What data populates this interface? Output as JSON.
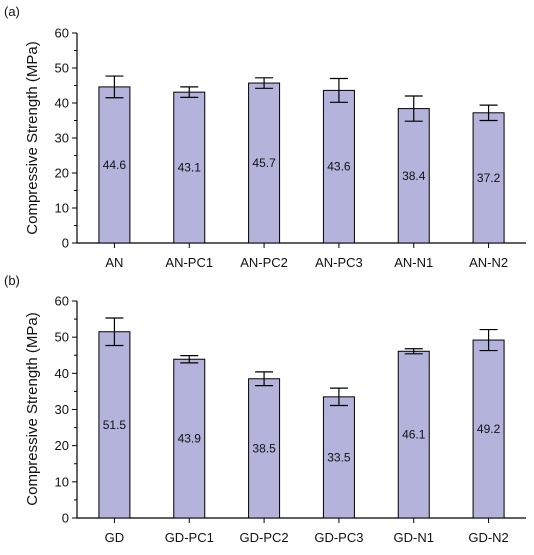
{
  "chart_data": [
    {
      "panel_label": "(a)",
      "type": "bar",
      "categories": [
        "AN",
        "AN-PC1",
        "AN-PC2",
        "AN-PC3",
        "AN-N1",
        "AN-N2"
      ],
      "values": [
        44.6,
        43.1,
        45.7,
        43.6,
        38.4,
        37.2
      ],
      "value_labels": [
        "44.6",
        "43.1",
        "45.7",
        "43.6",
        "38.4",
        "37.2"
      ],
      "errors": [
        3.1,
        1.5,
        1.5,
        3.4,
        3.6,
        2.2
      ],
      "ylabel": "Compressive Strength (MPa)",
      "xlabel": "",
      "ylim": [
        0,
        60
      ],
      "yticks": [
        0,
        10,
        20,
        30,
        40,
        50,
        60
      ],
      "bar_color": "#b3b3db",
      "grid": false
    },
    {
      "panel_label": "(b)",
      "type": "bar",
      "categories": [
        "GD",
        "GD-PC1",
        "GD-PC2",
        "GD-PC3",
        "GD-N1",
        "GD-N2"
      ],
      "values": [
        51.5,
        43.9,
        38.5,
        33.5,
        46.1,
        49.2
      ],
      "value_labels": [
        "51.5",
        "43.9",
        "38.5",
        "33.5",
        "46.1",
        "49.2"
      ],
      "errors": [
        3.8,
        1.0,
        1.9,
        2.4,
        0.7,
        2.9
      ],
      "ylabel": "Compressive Strength (MPa)",
      "xlabel": "",
      "ylim": [
        0,
        60
      ],
      "yticks": [
        0,
        10,
        20,
        30,
        40,
        50,
        60
      ],
      "bar_color": "#b3b3db",
      "grid": false
    }
  ]
}
